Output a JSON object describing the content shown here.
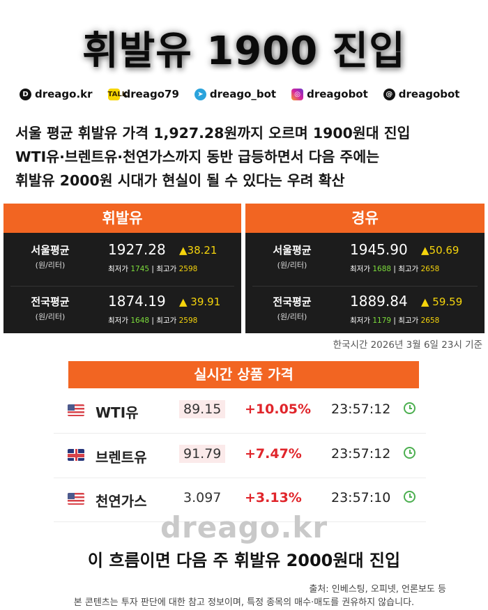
{
  "title": "휘발유 1900 진입",
  "social": [
    {
      "icon": "dreago-logo-icon",
      "text": "dreago.kr"
    },
    {
      "icon": "kakaotalk-icon",
      "text": "dreago79"
    },
    {
      "icon": "telegram-icon",
      "text": "dreago_bot"
    },
    {
      "icon": "instagram-icon",
      "text": "dreagobot"
    },
    {
      "icon": "threads-icon",
      "text": "dreagobot"
    }
  ],
  "headline": [
    "서울 평균 휘발유 가격 1,927.28원까지 오르며 1900원대 진입",
    "WTI유·브렌트유·천연가스까지 동반 급등하면서 다음 주에는",
    "휘발유 2000원 시대가 현실이 될 수 있다는 우려 확산"
  ],
  "panels": [
    {
      "header": "휘발유",
      "rows": [
        {
          "label": "서울평균",
          "unit": "(원/리터)",
          "price": "1927.28",
          "change": "▲38.21",
          "min_label": "최저가",
          "min": "1745",
          "max_label": "최고가",
          "max": "2598"
        },
        {
          "label": "전국평균",
          "unit": "(원/리터)",
          "price": "1874.19",
          "change": "▲ 39.91",
          "min_label": "최저가",
          "min": "1648",
          "max_label": "최고가",
          "max": "2598"
        }
      ]
    },
    {
      "header": "경유",
      "rows": [
        {
          "label": "서울평균",
          "unit": "(원/리터)",
          "price": "1945.90",
          "change": "▲50.69",
          "min_label": "최저가",
          "min": "1688",
          "max_label": "최고가",
          "max": "2658"
        },
        {
          "label": "전국평균",
          "unit": "(원/리터)",
          "price": "1889.84",
          "change": "▲ 59.59",
          "min_label": "최저가",
          "min": "1179",
          "max_label": "최고가",
          "max": "2658"
        }
      ]
    }
  ],
  "timestamp": "한국시간 2026년 3월 6일 23시 기준",
  "realtime": {
    "header": "실시간 상품 가격",
    "items": [
      {
        "flag": "us-flag-icon",
        "name": "WTI유",
        "price": "89.15",
        "change": "+10.05%",
        "time": "23:57:12"
      },
      {
        "flag": "uk-flag-icon",
        "name": "브렌트유",
        "price": "91.79",
        "change": "+7.47%",
        "time": "23:57:12"
      },
      {
        "flag": "us-flag-icon",
        "name": "천연가스",
        "price": "3.097",
        "change": "+3.13%",
        "time": "23:57:10"
      }
    ]
  },
  "watermark": "dreago.kr",
  "bottom_headline": "이 흐름이면 다음 주 휘발유 2000원대 진입",
  "source": "출처: 인베스팅, 오피넷, 언론보도 등",
  "disclaimer": "본 콘텐츠는 투자 판단에 대한 참고 정보이며, 특정 종목의 매수·매도를 권유하지 않습니다."
}
